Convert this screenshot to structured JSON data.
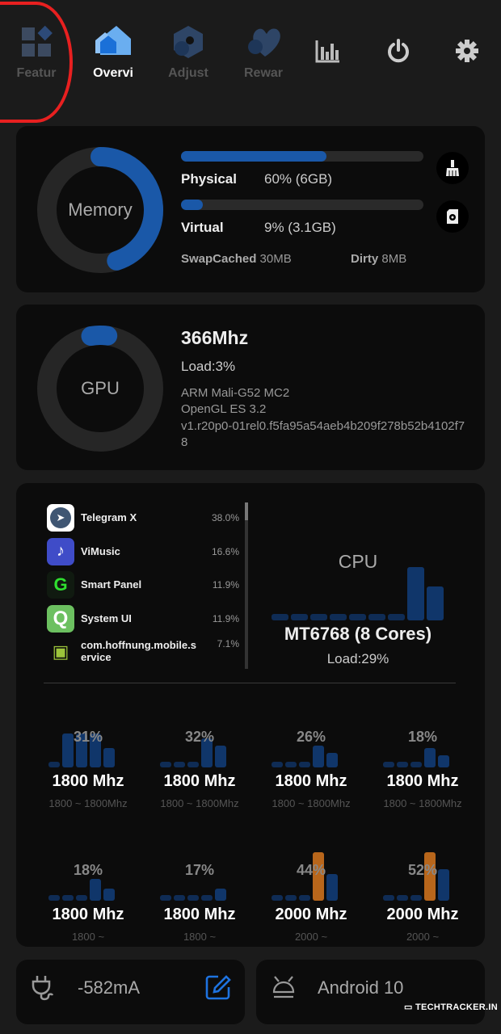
{
  "nav": {
    "tabs": [
      {
        "label": "Featur",
        "icon": "features-grid-icon",
        "active": false
      },
      {
        "label": "Overvi",
        "icon": "home-icon",
        "active": true
      },
      {
        "label": "Adjust",
        "icon": "adjust-hexagon-icon",
        "active": false
      },
      {
        "label": "Rewar",
        "icon": "heart-icon",
        "active": false
      }
    ],
    "actions": [
      {
        "icon": "bar-chart-icon"
      },
      {
        "icon": "power-icon"
      },
      {
        "icon": "gear-icon"
      }
    ]
  },
  "memory": {
    "title": "Memory",
    "usage_fraction": 0.6,
    "physical": {
      "label": "Physical",
      "value": "60% (6GB)",
      "fraction": 0.6
    },
    "virtual": {
      "label": "Virtual",
      "value": "9% (3.1GB)",
      "fraction": 0.09
    },
    "swap_label": "SwapCached",
    "swap_value": "30MB",
    "dirty_label": "Dirty",
    "dirty_value": "8MB",
    "buttons": [
      {
        "icon": "broom-icon"
      },
      {
        "icon": "sd-card-icon"
      }
    ]
  },
  "gpu": {
    "title": "GPU",
    "freq": "366Mhz",
    "load": "Load:3%",
    "load_fraction": 0.03,
    "model": "ARM Mali-G52 MC2",
    "api": "OpenGL ES 3.2",
    "driver": "v1.r20p0-01rel0.f5fa95a54aeb4b209f278b52b4102f78"
  },
  "processes": [
    {
      "name": "Telegram X",
      "percent": "38.0%",
      "icon": "telegram-icon"
    },
    {
      "name": "ViMusic",
      "percent": "16.6%",
      "icon": "vimusic-icon"
    },
    {
      "name": "Smart Panel",
      "percent": "11.9%",
      "icon": "smart-panel-icon"
    },
    {
      "name": "System UI",
      "percent": "11.9%",
      "icon": "system-ui-icon"
    },
    {
      "name": "com.hoffnung.mobile.service",
      "percent": "7.1%",
      "icon": "android-icon"
    }
  ],
  "cpu": {
    "title": "CPU",
    "model": "MT6768 (8 Cores)",
    "load": "Load:29%",
    "history": [
      0.1,
      0.1,
      0.1,
      0.1,
      0.1,
      0.1,
      0.1,
      0.95,
      0.6
    ],
    "cores": [
      {
        "percent": "31%",
        "freq": "1800 Mhz",
        "range": "1800 ~ 1800Mhz",
        "history": [
          0.1,
          0.7,
          0.7,
          0.7,
          0.4
        ]
      },
      {
        "percent": "32%",
        "freq": "1800 Mhz",
        "range": "1800 ~ 1800Mhz",
        "history": [
          0.1,
          0.1,
          0.1,
          0.6,
          0.45
        ]
      },
      {
        "percent": "26%",
        "freq": "1800 Mhz",
        "range": "1800 ~ 1800Mhz",
        "history": [
          0.1,
          0.1,
          0.1,
          0.45,
          0.3
        ]
      },
      {
        "percent": "18%",
        "freq": "1800 Mhz",
        "range": "1800 ~ 1800Mhz",
        "history": [
          0.1,
          0.1,
          0.1,
          0.4,
          0.25
        ]
      },
      {
        "percent": "18%",
        "freq": "1800 Mhz",
        "range": "1800 ~",
        "history": [
          0.1,
          0.1,
          0.1,
          0.45,
          0.25
        ]
      },
      {
        "percent": "17%",
        "freq": "1800 Mhz",
        "range": "1800 ~",
        "history": [
          0.1,
          0.1,
          0.1,
          0.1,
          0.25
        ]
      },
      {
        "percent": "44%",
        "freq": "2000 Mhz",
        "range": "2000 ~",
        "history": [
          0.1,
          0.1,
          0.1,
          1.0,
          0.55
        ],
        "peak_index": 3
      },
      {
        "percent": "52%",
        "freq": "2000 Mhz",
        "range": "2000 ~",
        "history": [
          0.1,
          0.1,
          0.1,
          1.0,
          0.65
        ],
        "peak_index": 3
      }
    ]
  },
  "battery": {
    "current": "-582mA",
    "icon": "plug-icon",
    "edit_icon": "edit-icon"
  },
  "system": {
    "os": "Android 10",
    "icon": "android-head-icon"
  },
  "watermark": "TechTracker.in",
  "colors": {
    "accent": "#1a58a8",
    "peak": "#b8661b",
    "card": "#0c0c0c",
    "background": "#1b1b1b"
  }
}
